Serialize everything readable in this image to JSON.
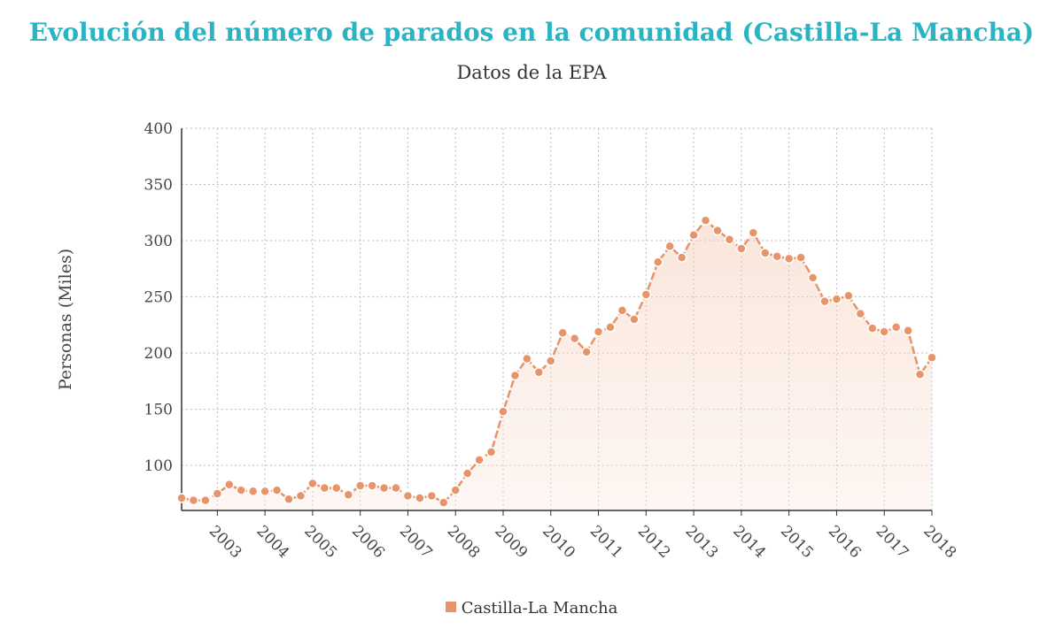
{
  "chart_data": {
    "type": "line",
    "title": "Evolución del número de parados en la comunidad (Castilla-La Mancha)",
    "subtitle": "Datos de la EPA",
    "xlabel": "",
    "ylabel": "Personas (Miles)",
    "ylim": [
      60,
      400
    ],
    "yticks": [
      100,
      150,
      200,
      250,
      300,
      350,
      400
    ],
    "xtick_labels": [
      "2003",
      "2004",
      "2005",
      "2006",
      "2007",
      "2008",
      "2009",
      "2010",
      "2011",
      "2012",
      "2013",
      "2014",
      "2015",
      "2016",
      "2017",
      "2018"
    ],
    "first_period": "2002-T2",
    "grid": true,
    "area_fill": true,
    "legend_position": "bottom",
    "color": "#e8946a",
    "series": [
      {
        "name": "Castilla-La Mancha",
        "values": [
          71,
          69,
          69,
          75,
          83,
          78,
          77,
          77,
          78,
          70,
          73,
          84,
          80,
          80,
          74,
          82,
          82,
          80,
          80,
          73,
          71,
          73,
          67,
          78,
          93,
          105,
          112,
          148,
          180,
          195,
          183,
          193,
          218,
          213,
          201,
          219,
          223,
          238,
          230,
          252,
          281,
          295,
          285,
          305,
          318,
          309,
          301,
          293,
          307,
          289,
          286,
          284,
          285,
          267,
          246,
          248,
          251,
          235,
          222,
          219,
          223,
          220,
          181,
          196
        ]
      }
    ]
  },
  "legend": {
    "label": "Castilla-La Mancha"
  }
}
